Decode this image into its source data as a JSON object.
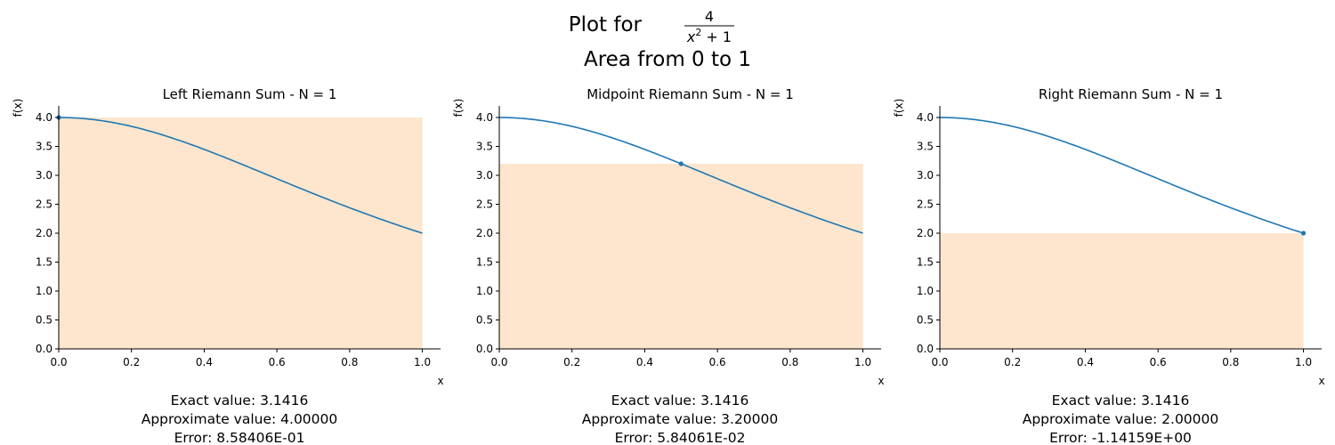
{
  "title": {
    "prefix": "Plot for ",
    "numerator": "4",
    "denominator_base": "x",
    "denominator_exp": "2",
    "denominator_rest": " + 1",
    "line2": "Area from 0 to 1"
  },
  "colors": {
    "curve": "#1f77b4",
    "rect_fill": "#fde6cd",
    "axis": "#000000"
  },
  "chart_data": [
    {
      "type": "area",
      "title": "Left Riemann Sum - N = 1",
      "xlabel": "x",
      "ylabel": "f(x)",
      "xlim": [
        0,
        1.05
      ],
      "ylim": [
        0,
        4.2
      ],
      "xticks": [
        "0.0",
        "0.2",
        "0.4",
        "0.6",
        "0.8",
        "1.0"
      ],
      "yticks": [
        "0.0",
        "0.5",
        "1.0",
        "1.5",
        "2.0",
        "2.5",
        "3.0",
        "3.5",
        "4.0"
      ],
      "function": "4/(x^2+1)",
      "curve_x_range": [
        0,
        1
      ],
      "rectangles": [
        {
          "x0": 0,
          "x1": 1,
          "height": 4.0
        }
      ],
      "sample_points": [
        {
          "x": 0.0,
          "y": 4.0
        }
      ],
      "exact": "Exact value: 3.1416",
      "approx": "Approximate value: 4.00000",
      "error": "Error: 8.58406E-01"
    },
    {
      "type": "area",
      "title": "Midpoint Riemann Sum - N = 1",
      "xlabel": "x",
      "ylabel": "f(x)",
      "xlim": [
        0,
        1.05
      ],
      "ylim": [
        0,
        4.2
      ],
      "xticks": [
        "0.0",
        "0.2",
        "0.4",
        "0.6",
        "0.8",
        "1.0"
      ],
      "yticks": [
        "0.0",
        "0.5",
        "1.0",
        "1.5",
        "2.0",
        "2.5",
        "3.0",
        "3.5",
        "4.0"
      ],
      "function": "4/(x^2+1)",
      "curve_x_range": [
        0,
        1
      ],
      "rectangles": [
        {
          "x0": 0,
          "x1": 1,
          "height": 3.2
        }
      ],
      "sample_points": [
        {
          "x": 0.5,
          "y": 3.2
        }
      ],
      "exact": "Exact value: 3.1416",
      "approx": "Approximate value: 3.20000",
      "error": "Error: 5.84061E-02"
    },
    {
      "type": "area",
      "title": "Right Riemann Sum - N = 1",
      "xlabel": "x",
      "ylabel": "f(x)",
      "xlim": [
        0,
        1.05
      ],
      "ylim": [
        0,
        4.2
      ],
      "xticks": [
        "0.0",
        "0.2",
        "0.4",
        "0.6",
        "0.8",
        "1.0"
      ],
      "yticks": [
        "0.0",
        "0.5",
        "1.0",
        "1.5",
        "2.0",
        "2.5",
        "3.0",
        "3.5",
        "4.0"
      ],
      "function": "4/(x^2+1)",
      "curve_x_range": [
        0,
        1
      ],
      "rectangles": [
        {
          "x0": 0,
          "x1": 1,
          "height": 2.0
        }
      ],
      "sample_points": [
        {
          "x": 1.0,
          "y": 2.0
        }
      ],
      "exact": "Exact value: 3.1416",
      "approx": "Approximate value: 2.00000",
      "error": "Error: -1.14159E+00"
    }
  ]
}
